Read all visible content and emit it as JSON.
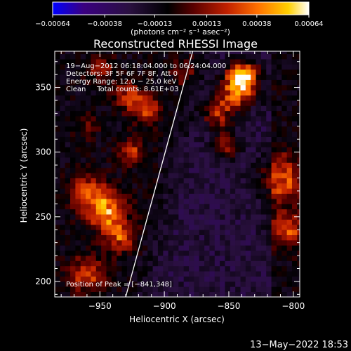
{
  "chart_data": {
    "type": "heatmap",
    "title": "Reconstructed RHESSI Image",
    "xlabel": "Heliocentric X (arcsec)",
    "ylabel": "Heliocentric Y (arcsec)",
    "xlim": [
      -985,
      -795
    ],
    "ylim": [
      188,
      378
    ],
    "x_ticks": [
      -950,
      -900,
      -850,
      -800
    ],
    "x_tick_labels": [
      "−950",
      "−900",
      "−850",
      "−800"
    ],
    "y_ticks": [
      200,
      250,
      300,
      350
    ],
    "y_tick_labels": [
      "200",
      "250",
      "300",
      "350"
    ],
    "colorbar": {
      "range": [
        -0.00064,
        0.00064
      ],
      "colors": [
        "#0000ff",
        "#3a0080",
        "#2a1040",
        "#000000",
        "#5a0000",
        "#c02000",
        "#ff7000",
        "#ffd000",
        "#ffffff"
      ],
      "ticks": [
        -0.00064,
        -0.00038,
        -0.00013,
        0.00013,
        0.00038,
        0.00064
      ],
      "tick_labels": [
        "−0.00064",
        "−0.00038",
        "−0.00013",
        "0.00013",
        "0.00038",
        "0.00064"
      ],
      "unit": "(photons cm⁻² s⁻¹ asec⁻²)"
    },
    "grid": false,
    "annotations": [
      "19−Aug−2012 06:18:04.000 to 06:24:04.000",
      "Detectors: 3F 5F 6F 7F 8F, Att 0",
      "Energy Range: 12.0 − 25.0 keV",
      "Clean     Total counts: 8.61E+03"
    ],
    "peak_label": "Position of Peak = [−841,348]",
    "peak": [
      -841,
      348
    ],
    "limb_line": {
      "x": [
        -930,
        -878
      ],
      "y": [
        188,
        378
      ]
    }
  },
  "footer": {
    "date": "13−May−2022 18:53"
  }
}
